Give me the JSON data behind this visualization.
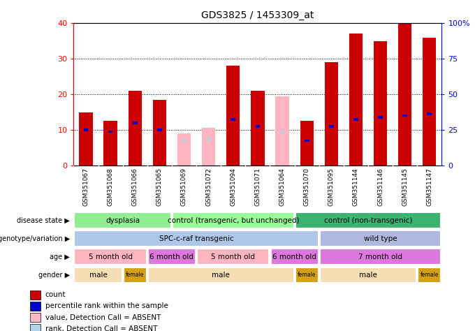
{
  "title": "GDS3825 / 1453309_at",
  "samples": [
    "GSM351067",
    "GSM351068",
    "GSM351066",
    "GSM351065",
    "GSM351069",
    "GSM351072",
    "GSM351094",
    "GSM351071",
    "GSM351064",
    "GSM351070",
    "GSM351095",
    "GSM351144",
    "GSM351146",
    "GSM351145",
    "GSM351147"
  ],
  "count_values": [
    15.0,
    12.5,
    21.0,
    18.5,
    0,
    0,
    28.0,
    21.0,
    0,
    12.5,
    29.0,
    37.0,
    35.0,
    40.0,
    36.0
  ],
  "absent_value_values": [
    0,
    0,
    0,
    0,
    9.0,
    10.5,
    0,
    0,
    19.5,
    0,
    0,
    0,
    0,
    0,
    0
  ],
  "percentile_rank": [
    10.0,
    9.5,
    12.0,
    10.0,
    0,
    0,
    13.0,
    11.0,
    0,
    7.0,
    11.0,
    13.0,
    13.5,
    14.0,
    14.5
  ],
  "absent_rank_values": [
    0,
    0,
    0,
    0,
    7.0,
    7.5,
    0,
    0,
    9.5,
    0,
    0,
    0,
    0,
    0,
    0
  ],
  "disease_state": [
    {
      "label": "dysplasia",
      "start": 0,
      "end": 4,
      "color": "#90ee90"
    },
    {
      "label": "control (transgenic, but unchanged)",
      "start": 4,
      "end": 9,
      "color": "#98fb98"
    },
    {
      "label": "control (non-transgenic)",
      "start": 9,
      "end": 15,
      "color": "#3cb371"
    }
  ],
  "genotype": [
    {
      "label": "SPC-c-raf transgenic",
      "start": 0,
      "end": 10,
      "color": "#aec6e8"
    },
    {
      "label": "wild type",
      "start": 10,
      "end": 15,
      "color": "#b0b8e0"
    }
  ],
  "age": [
    {
      "label": "5 month old",
      "start": 0,
      "end": 3,
      "color": "#ffb6c1"
    },
    {
      "label": "6 month old",
      "start": 3,
      "end": 5,
      "color": "#dd77dd"
    },
    {
      "label": "5 month old",
      "start": 5,
      "end": 8,
      "color": "#ffb6c1"
    },
    {
      "label": "6 month old",
      "start": 8,
      "end": 10,
      "color": "#dd77dd"
    },
    {
      "label": "7 month old",
      "start": 10,
      "end": 15,
      "color": "#dd77dd"
    }
  ],
  "gender": [
    {
      "label": "male",
      "start": 0,
      "end": 2,
      "color": "#f5deb3"
    },
    {
      "label": "female",
      "start": 2,
      "end": 3,
      "color": "#d4a017"
    },
    {
      "label": "male",
      "start": 3,
      "end": 9,
      "color": "#f5deb3"
    },
    {
      "label": "female",
      "start": 9,
      "end": 10,
      "color": "#d4a017"
    },
    {
      "label": "male",
      "start": 10,
      "end": 14,
      "color": "#f5deb3"
    },
    {
      "label": "female",
      "start": 14,
      "end": 15,
      "color": "#d4a017"
    }
  ],
  "ylim": [
    0,
    40
  ],
  "yticks_left": [
    0,
    10,
    20,
    30,
    40
  ],
  "yticks_right": [
    0,
    25,
    50,
    75,
    100
  ],
  "bar_width": 0.55,
  "count_color": "#cc0000",
  "absent_value_color": "#ffb6c1",
  "percentile_color": "#0000cc",
  "absent_rank_color": "#b0d4e8",
  "bg_color": "#d3d3d3",
  "row_labels": [
    "disease state",
    "genotype/variation",
    "age",
    "gender"
  ],
  "row_keys": [
    "disease_state",
    "genotype",
    "age",
    "gender"
  ],
  "legend_items": [
    {
      "color": "#cc0000",
      "label": "count"
    },
    {
      "color": "#0000cc",
      "label": "percentile rank within the sample"
    },
    {
      "color": "#ffb6c1",
      "label": "value, Detection Call = ABSENT"
    },
    {
      "color": "#b0d4e8",
      "label": "rank, Detection Call = ABSENT"
    }
  ]
}
